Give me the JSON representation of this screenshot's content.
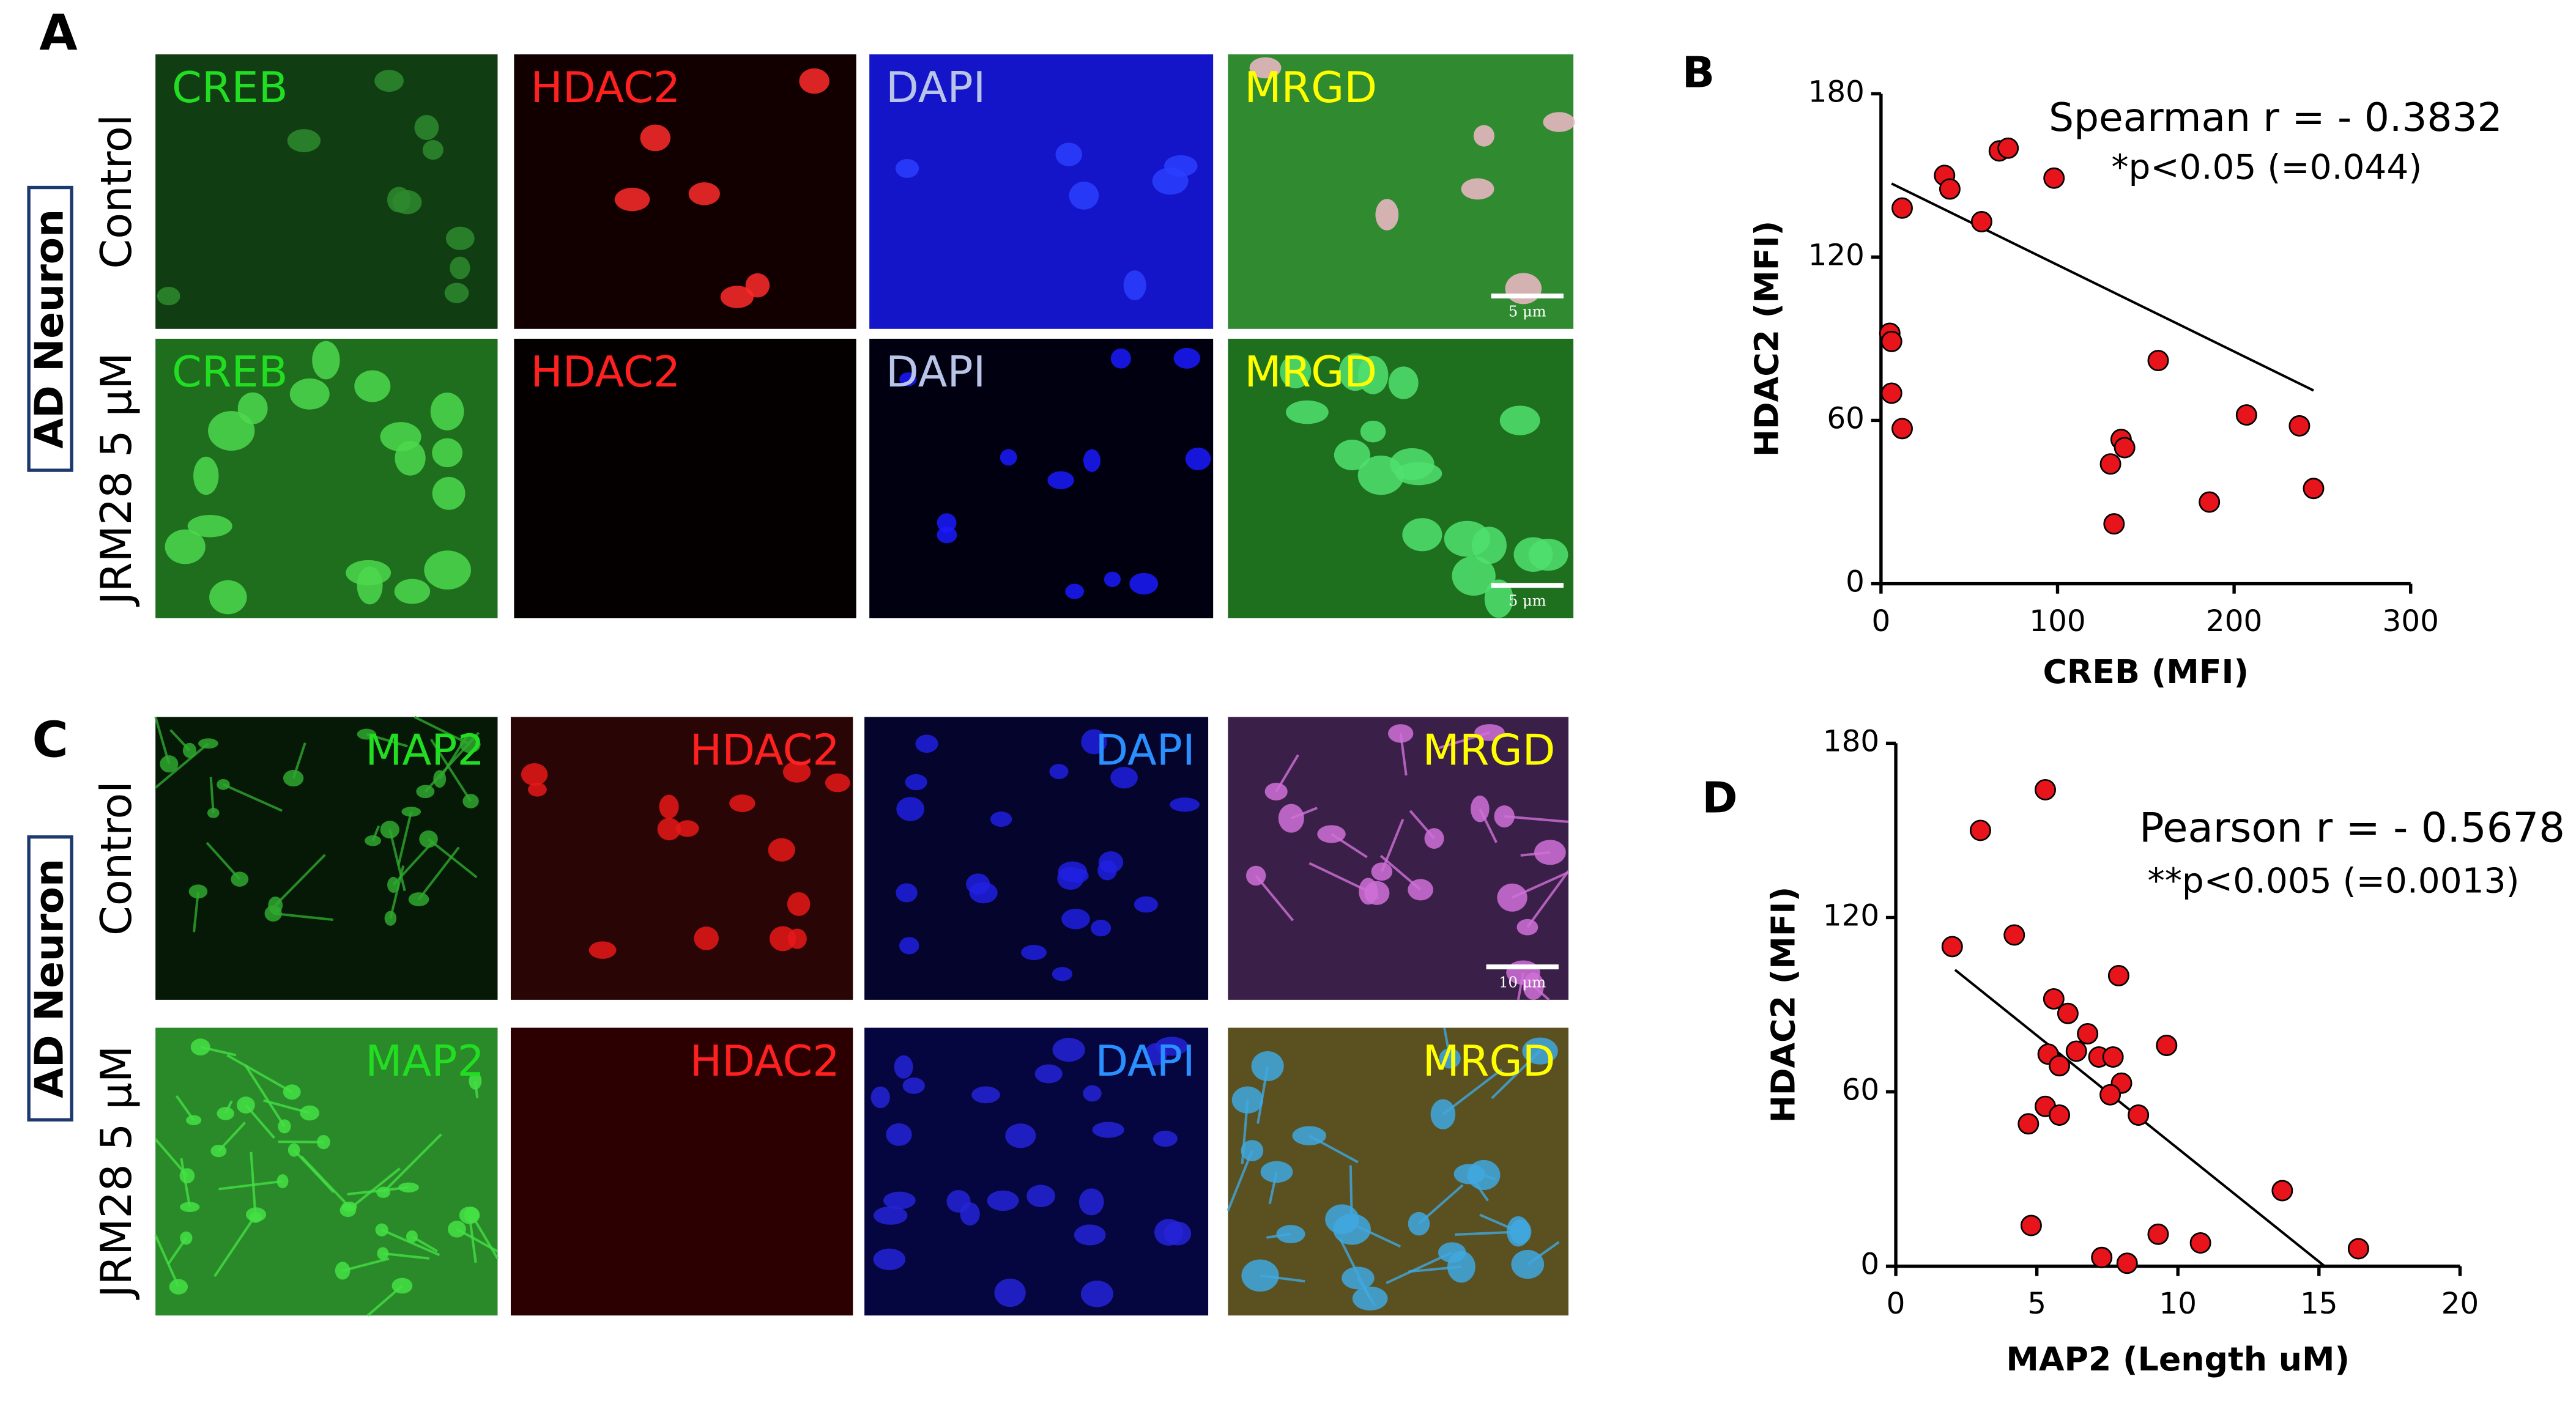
{
  "panels": [
    {
      "label": "A",
      "group": "AD Neuron",
      "rows": [
        {
          "label": "Control",
          "images": [
            "CREB",
            "HDAC2",
            "DAPI",
            "MRGD"
          ],
          "scale_bar": "5 μm"
        },
        {
          "label": "JRM28 5 μM",
          "images": [
            "CREB",
            "HDAC2",
            "DAPI",
            "MRGD"
          ],
          "scale_bar": "5 μm"
        }
      ]
    },
    {
      "label": "C",
      "group": "AD Neuron",
      "rows": [
        {
          "label": "Control",
          "images": [
            "MAP2",
            "HDAC2",
            "DAPI",
            "MRGD"
          ],
          "scale_bar": "10 μm"
        },
        {
          "label": "JRM28 5 μM",
          "images": [
            "MAP2",
            "HDAC2",
            "DAPI",
            "MRGD"
          ]
        }
      ]
    }
  ],
  "chart_data": [
    {
      "type": "scatter",
      "label": "B",
      "x_label": "CREB (MFI)",
      "y_label": "HDAC2 (MFI)",
      "annotations": [
        "Spearman r = - 0.3832",
        "*p<0.05 (=0.044)"
      ],
      "color": "#e8141b",
      "x": [
        36,
        39,
        67,
        72,
        98,
        57,
        12,
        5,
        6,
        6,
        12,
        157,
        207,
        237,
        245,
        186,
        136,
        138,
        130,
        132
      ],
      "values": [
        150,
        145,
        159,
        160,
        149,
        133,
        138,
        92,
        89,
        70,
        57,
        82,
        62,
        58,
        35,
        30,
        53,
        50,
        44,
        22
      ],
      "trend": {
        "x": [
          6,
          245
        ],
        "y": [
          147,
          71
        ]
      },
      "xlim": [
        0,
        300
      ],
      "ylim": [
        0,
        180
      ],
      "xticks": [
        0,
        100,
        200,
        300
      ],
      "yticks": [
        0,
        60,
        120,
        180
      ]
    },
    {
      "type": "scatter",
      "label": "D",
      "x_label": "MAP2 (Length uM)",
      "y_label": "HDAC2 (MFI)",
      "annotations": [
        "Pearson r = - 0.5678",
        "**p<0.005 (=0.0013)"
      ],
      "color": "#e8141b",
      "x": [
        5.3,
        3.0,
        2.0,
        4.2,
        7.9,
        5.6,
        6.1,
        6.8,
        9.6,
        5.4,
        6.4,
        7.2,
        7.7,
        5.8,
        8.0,
        7.6,
        5.3,
        5.8,
        8.6,
        4.7,
        13.7,
        4.8,
        9.3,
        10.8,
        7.3,
        8.2,
        16.4
      ],
      "values": [
        164,
        150,
        110,
        114,
        100,
        92,
        87,
        80,
        76,
        73,
        74,
        72,
        72,
        69,
        63,
        59,
        55,
        52,
        52,
        49,
        26,
        14,
        11,
        8,
        3,
        1,
        6
      ],
      "trend": {
        "x": [
          2.1,
          15.2
        ],
        "y": [
          102,
          0
        ]
      },
      "xlim": [
        0,
        20
      ],
      "ylim": [
        0,
        180
      ],
      "xticks": [
        0,
        5,
        10,
        15,
        20
      ],
      "yticks": [
        0,
        60,
        120,
        180
      ]
    }
  ]
}
